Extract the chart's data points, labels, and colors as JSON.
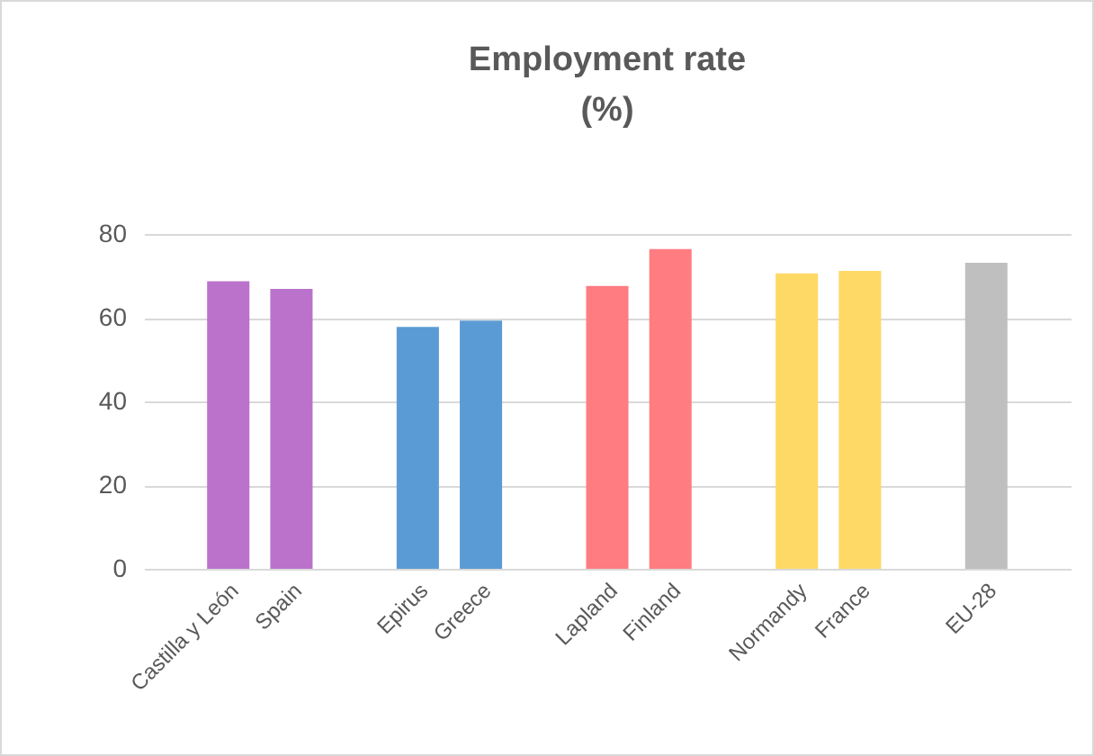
{
  "chart_data": {
    "type": "bar",
    "title": "Employment rate\n(%)",
    "categories": [
      "Castilla y León",
      "Spain",
      null,
      "Epirus",
      "Greece",
      null,
      "Lapland",
      "Finland",
      null,
      "Normandy",
      "France",
      null,
      "EU-28"
    ],
    "values": [
      68.7,
      66.9,
      null,
      57.8,
      59.3,
      null,
      67.6,
      76.4,
      null,
      70.6,
      71.2,
      null,
      73.1
    ],
    "colors": [
      "#bb72cb",
      "#bb72cb",
      null,
      "#5b9bd5",
      "#5b9bd5",
      null,
      "#ff7c80",
      "#ff7c80",
      null,
      "#ffd966",
      "#ffd966",
      null,
      "#bfbfbf"
    ],
    "ylim": [
      0,
      80
    ],
    "yticks": [
      0,
      20,
      40,
      60,
      80
    ],
    "grid": "y"
  }
}
